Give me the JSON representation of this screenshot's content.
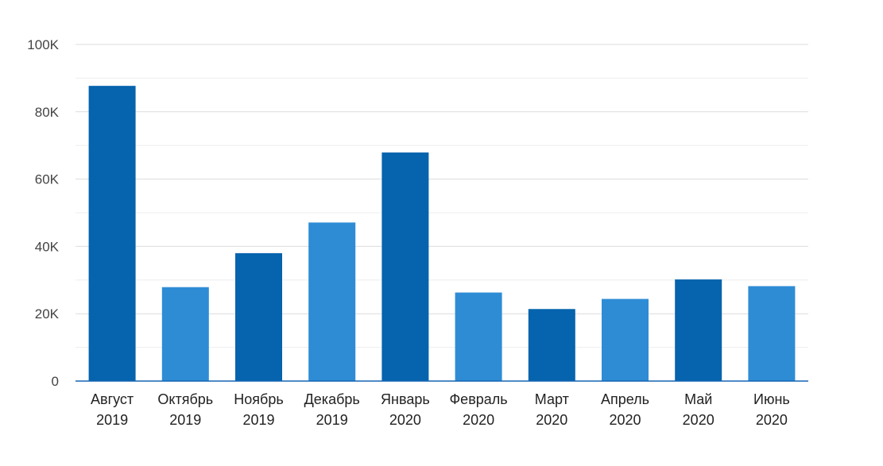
{
  "chart_data": {
    "type": "bar",
    "title": "",
    "xlabel": "",
    "ylabel": "",
    "ylim": [
      0,
      100000
    ],
    "y_ticks": [
      0,
      20000,
      40000,
      60000,
      80000,
      100000
    ],
    "y_tick_labels": [
      "0",
      "20K",
      "40K",
      "60K",
      "80K",
      "100K"
    ],
    "grid": true,
    "legend": "none",
    "categories": [
      [
        "Август",
        "2019"
      ],
      [
        "Октябрь",
        "2019"
      ],
      [
        "Ноябрь",
        "2019"
      ],
      [
        "Декабрь",
        "2019"
      ],
      [
        "Январь",
        "2020"
      ],
      [
        "Февраль",
        "2020"
      ],
      [
        "Март",
        "2020"
      ],
      [
        "Апрель",
        "2020"
      ],
      [
        "Май",
        "2020"
      ],
      [
        "Июнь",
        "2020"
      ]
    ],
    "values": [
      87700,
      27900,
      38000,
      47100,
      67900,
      26300,
      21400,
      24400,
      30200,
      28200
    ],
    "bar_colors": [
      "#0663ad",
      "#2e8cd5",
      "#0663ad",
      "#2e8cd5",
      "#0663ad",
      "#2e8cd5",
      "#0663ad",
      "#2e8cd5",
      "#0663ad",
      "#2e8cd5"
    ],
    "axis_color": "#1565b3"
  }
}
